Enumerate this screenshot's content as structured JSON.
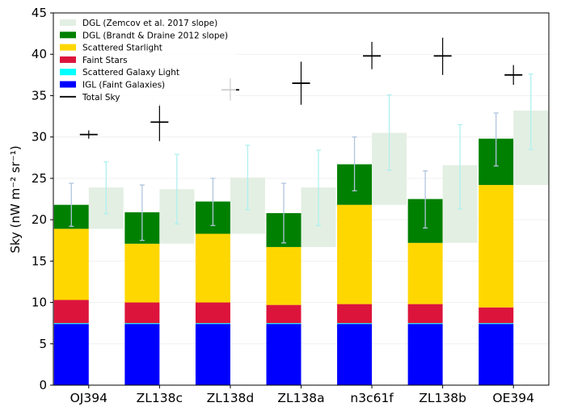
{
  "chart_data": {
    "type": "bar",
    "ylabel": "Sky (nW m⁻² sr⁻¹)",
    "ylim": [
      0,
      45
    ],
    "yticks": [
      0,
      5,
      10,
      15,
      20,
      25,
      30,
      35,
      40,
      45
    ],
    "categories": [
      "OJ394",
      "ZL138c",
      "ZL138d",
      "ZL138a",
      "n3c61f",
      "ZL138b",
      "OE394"
    ],
    "legend_position": "top-left",
    "legend": [
      {
        "label": "DGL (Zemcov et al. 2017 slope)",
        "color": "#e3efe3",
        "kind": "patch"
      },
      {
        "label": "DGL (Brandt & Draine 2012 slope)",
        "color": "#008000",
        "kind": "patch"
      },
      {
        "label": "Scattered Starlight",
        "color": "#ffd700",
        "kind": "patch"
      },
      {
        "label": "Faint Stars",
        "color": "#dc143c",
        "kind": "patch"
      },
      {
        "label": "Scattered Galaxy Light",
        "color": "#00ffff",
        "kind": "patch"
      },
      {
        "label": "IGL (Faint Galaxies)",
        "color": "#0000ff",
        "kind": "patch"
      },
      {
        "label": "Total Sky",
        "color": "#000000",
        "kind": "line"
      }
    ],
    "series": [
      {
        "name": "IGL (Faint Galaxies)",
        "color": "#0000ff",
        "values": [
          7.4,
          7.4,
          7.4,
          7.4,
          7.4,
          7.4,
          7.4
        ]
      },
      {
        "name": "Scattered Galaxy Light",
        "color": "#00ffff",
        "values": [
          0.1,
          0.1,
          0.1,
          0.1,
          0.1,
          0.1,
          0.1
        ]
      },
      {
        "name": "Faint Stars",
        "color": "#dc143c",
        "values": [
          2.8,
          2.5,
          2.5,
          2.2,
          2.3,
          2.3,
          1.9
        ]
      },
      {
        "name": "Scattered Starlight",
        "color": "#ffd700",
        "values": [
          8.6,
          7.1,
          8.3,
          7.0,
          12.0,
          7.4,
          14.8
        ]
      },
      {
        "name": "DGL (Brandt & Draine 2012 slope)",
        "color": "#008000",
        "values": [
          2.9,
          3.8,
          3.9,
          4.1,
          4.9,
          5.3,
          5.6
        ],
        "err_low": [
          2.6,
          3.4,
          2.9,
          3.6,
          3.2,
          3.5,
          3.3
        ],
        "err_high": [
          2.6,
          3.3,
          2.8,
          3.6,
          3.3,
          3.4,
          3.1
        ]
      },
      {
        "name": "DGL (Zemcov et al. 2017 slope)",
        "color": "#e3efe3",
        "bottom": [
          18.9,
          17.1,
          18.3,
          16.7,
          21.8,
          17.2,
          24.2
        ],
        "values": [
          5.0,
          6.6,
          6.8,
          7.2,
          8.7,
          9.4,
          9.0
        ],
        "err_low": [
          3.2,
          4.2,
          3.9,
          4.6,
          4.5,
          5.3,
          4.7
        ],
        "err_high": [
          3.1,
          4.2,
          3.9,
          4.5,
          4.6,
          4.9,
          4.4
        ]
      }
    ],
    "total_sky": {
      "name": "Total Sky",
      "values": [
        30.3,
        31.8,
        35.7,
        36.5,
        39.8,
        39.8,
        37.5
      ],
      "err_low": [
        0.5,
        2.3,
        1.3,
        2.6,
        1.6,
        2.3,
        1.2
      ],
      "err_high": [
        0.5,
        2.2,
        1.4,
        2.6,
        1.7,
        2.2,
        1.2
      ]
    }
  }
}
